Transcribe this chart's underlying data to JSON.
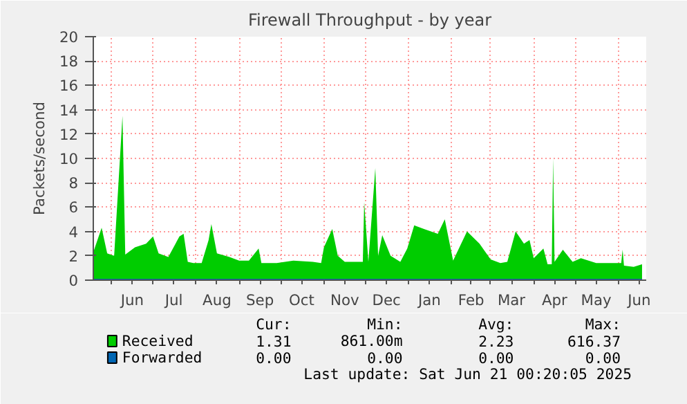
{
  "chart_data": {
    "type": "area",
    "title": "Firewall Throughput - by year",
    "ylabel": "Packets/second",
    "xlim": [
      "2024-05-19",
      "2025-06-21"
    ],
    "xticks": [
      {
        "value": "2024-06-01",
        "label": null
      },
      {
        "value": "2024-06-16",
        "label": "Jun"
      },
      {
        "value": "2024-07-01",
        "label": null
      },
      {
        "value": "2024-07-16",
        "label": "Jul"
      },
      {
        "value": "2024-08-01",
        "label": null
      },
      {
        "value": "2024-08-16",
        "label": "Aug"
      },
      {
        "value": "2024-09-01",
        "label": null
      },
      {
        "value": "2024-09-16",
        "label": "Sep"
      },
      {
        "value": "2024-10-01",
        "label": null
      },
      {
        "value": "2024-10-16",
        "label": "Oct"
      },
      {
        "value": "2024-11-01",
        "label": null
      },
      {
        "value": "2024-11-16",
        "label": "Nov"
      },
      {
        "value": "2024-12-01",
        "label": null
      },
      {
        "value": "2024-12-16",
        "label": "Dec"
      },
      {
        "value": "2025-01-01",
        "label": null
      },
      {
        "value": "2025-01-16",
        "label": "Jan"
      },
      {
        "value": "2025-02-01",
        "label": null
      },
      {
        "value": "2025-02-15",
        "label": "Feb"
      },
      {
        "value": "2025-03-01",
        "label": null
      },
      {
        "value": "2025-03-16",
        "label": "Mar"
      },
      {
        "value": "2025-04-01",
        "label": null
      },
      {
        "value": "2025-04-16",
        "label": "Apr"
      },
      {
        "value": "2025-05-01",
        "label": null
      },
      {
        "value": "2025-05-16",
        "label": "May"
      },
      {
        "value": "2025-06-01",
        "label": null
      },
      {
        "value": "2025-06-16",
        "label": "Jun"
      }
    ],
    "ylim": [
      0,
      20
    ],
    "yticks": [
      0,
      2,
      4,
      6,
      8,
      10,
      12,
      14,
      16,
      18,
      20
    ],
    "grid": true,
    "legend": "bottom",
    "series": [
      {
        "name": "Received",
        "color": "#00cc00",
        "x": [
          "2024-05-19",
          "2024-05-25",
          "2024-05-29",
          "2024-06-03",
          "2024-06-09",
          "2024-06-11",
          "2024-06-18",
          "2024-06-26",
          "2024-07-01",
          "2024-07-05",
          "2024-07-12",
          "2024-07-20",
          "2024-07-23",
          "2024-07-26",
          "2024-07-30",
          "2024-08-05",
          "2024-08-10",
          "2024-08-12",
          "2024-08-16",
          "2024-08-25",
          "2024-09-01",
          "2024-09-08",
          "2024-09-15",
          "2024-09-17",
          "2024-09-28",
          "2024-10-10",
          "2024-10-24",
          "2024-10-30",
          "2024-11-01",
          "2024-11-07",
          "2024-11-11",
          "2024-11-16",
          "2024-11-29",
          "2024-11-30",
          "2024-12-03",
          "2024-12-08",
          "2024-12-10",
          "2024-12-13",
          "2024-12-19",
          "2024-12-26",
          "2024-12-31",
          "2025-01-05",
          "2025-01-12",
          "2025-01-22",
          "2025-01-27",
          "2025-02-02",
          "2025-02-12",
          "2025-02-21",
          "2025-03-01",
          "2025-03-08",
          "2025-03-13",
          "2025-03-19",
          "2025-03-25",
          "2025-03-29",
          "2025-04-01",
          "2025-04-08",
          "2025-04-11",
          "2025-04-14",
          "2025-04-15",
          "2025-04-16",
          "2025-04-22",
          "2025-04-29",
          "2025-05-05",
          "2025-05-16",
          "2025-05-26",
          "2025-06-03",
          "2025-06-04",
          "2025-06-05",
          "2025-06-12",
          "2025-06-18"
        ],
        "values": [
          2.3,
          4.3,
          2.2,
          2.0,
          13.5,
          2.1,
          2.7,
          3.0,
          3.6,
          2.2,
          1.9,
          3.6,
          3.8,
          1.5,
          1.4,
          1.4,
          3.3,
          4.6,
          2.2,
          1.9,
          1.6,
          1.6,
          2.6,
          1.4,
          1.4,
          1.6,
          1.5,
          1.4,
          2.7,
          4.2,
          2.0,
          1.5,
          1.5,
          6.4,
          1.5,
          9.2,
          2.0,
          3.7,
          2.0,
          1.5,
          2.6,
          4.5,
          4.2,
          3.8,
          5.0,
          1.6,
          4.0,
          3.0,
          1.7,
          1.4,
          1.5,
          4.0,
          3.0,
          3.3,
          1.8,
          2.6,
          1.3,
          1.3,
          10.0,
          1.5,
          2.5,
          1.5,
          1.8,
          1.4,
          1.4,
          1.4,
          2.5,
          1.2,
          1.1,
          1.3
        ]
      },
      {
        "name": "Forwarded",
        "color": "#0066b3",
        "type": "line",
        "x": [
          "2024-05-19",
          "2025-06-18"
        ],
        "values": [
          0,
          0
        ]
      }
    ],
    "annotations": [
      "Cur:",
      "Min:",
      "Avg:",
      "Max:",
      "1.31",
      "861.00m",
      "2.23",
      "616.37",
      "0.00",
      "0.00",
      "0.00",
      "0.00",
      "Last update: Sat Jun 21 00:20:05 2025"
    ]
  }
}
